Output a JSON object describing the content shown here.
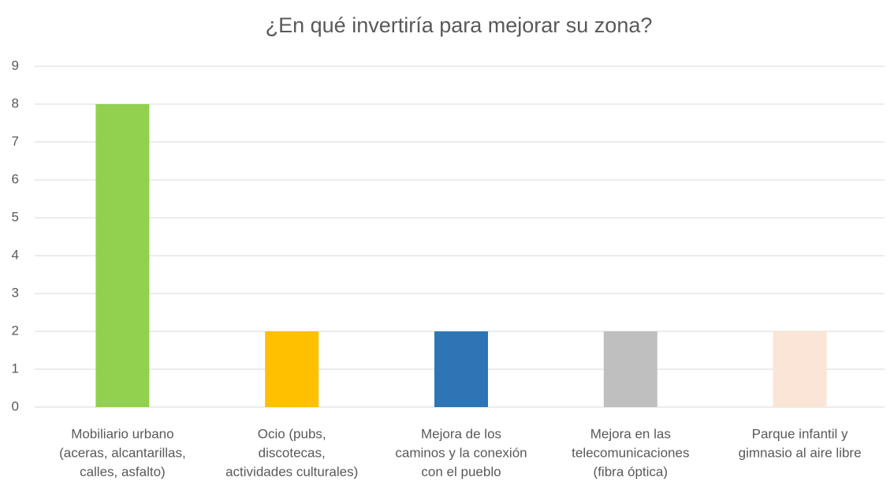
{
  "chart_data": {
    "type": "bar",
    "title": "¿En qué invertiría para mejorar su zona?",
    "categories": [
      [
        "Mobiliario urbano",
        "(aceras, alcantarillas,",
        "calles, asfalto)"
      ],
      [
        "Ocio (pubs,",
        "discotecas,",
        "actividades culturales)"
      ],
      [
        "Mejora de los",
        "caminos y la conexión",
        "con el pueblo"
      ],
      [
        "Mejora en las",
        "telecomunicaciones",
        "(fibra óptica)"
      ],
      [
        "Parque infantil y",
        "gimnasio al aire libre"
      ]
    ],
    "values": [
      8,
      2,
      2,
      2,
      2
    ],
    "colors": [
      "#92d050",
      "#ffc000",
      "#2e75b6",
      "#bfbfbf",
      "#fbe5d6"
    ],
    "ylim": [
      0,
      9
    ],
    "yticks": [
      0,
      1,
      2,
      3,
      4,
      5,
      6,
      7,
      8,
      9
    ],
    "grid": true
  }
}
